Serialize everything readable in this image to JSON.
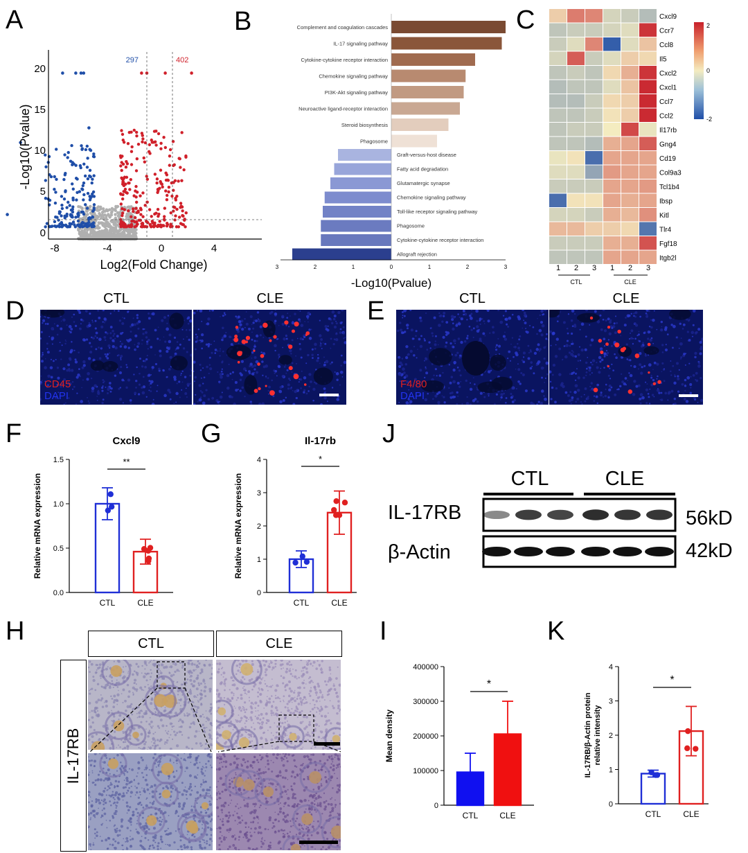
{
  "panels": {
    "A": "A",
    "B": "B",
    "C": "C",
    "D": "D",
    "E": "E",
    "F": "F",
    "G": "G",
    "H": "H",
    "I": "I",
    "J": "J",
    "K": "K"
  },
  "volcano": {
    "xlabel": "Log2(Fold Change)",
    "ylabel": "-Log10(Pvalue)",
    "count_down": "297",
    "count_up": "402",
    "xticks": [
      "-8",
      "-4",
      "0",
      "4"
    ],
    "yticks": [
      "0",
      "5",
      "10",
      "15",
      "20"
    ],
    "colors": {
      "down": "#1f4ea8",
      "up": "#d0202a",
      "ns": "#b0b0b0"
    }
  },
  "kegg": {
    "xlabel": "-Log10(Pvalue)",
    "up_terms": [
      "Complement and coagulation cascades",
      "IL-17 signaling pathway",
      "Cytokine-cytokine receptor interaction",
      "Chemokine signaling pathway",
      "PI3K-Akt signaling pathway",
      "Neuroactive ligand-receptor interaction",
      "Steroid biosynthesis",
      "Phagosome"
    ],
    "up_values": [
      3.0,
      2.9,
      2.2,
      1.95,
      1.9,
      1.8,
      1.5,
      1.2
    ],
    "up_colors": [
      "#7a4a32",
      "#8a563a",
      "#a06b4f",
      "#b88a70",
      "#c19a82",
      "#c9a893",
      "#e3cdbd",
      "#efe1d6"
    ],
    "down_terms": [
      "Graft-versus-host disease",
      "Fatty acid degradation",
      "Glutamatergic synapse",
      "Chemokine signaling pathway",
      "Toll-like receptor signaling pathway",
      "Phagosome",
      "Cytokine-cytokine receptor interaction",
      "Allograft rejection"
    ],
    "down_values": [
      1.4,
      1.5,
      1.6,
      1.75,
      1.8,
      1.85,
      1.85,
      2.6
    ],
    "down_colors": [
      "#a9b4e0",
      "#98a5da",
      "#8a98d4",
      "#7d8cce",
      "#7282c6",
      "#6b7bc0",
      "#6878bd",
      "#2b3f8e"
    ],
    "xticks": [
      "3",
      "2",
      "1",
      "0",
      "1",
      "2",
      "3"
    ]
  },
  "heatmap": {
    "genes": [
      "Cxcl9",
      "Ccr7",
      "Ccl8",
      "Il5",
      "Cxcl2",
      "Cxcl1",
      "Ccl7",
      "Ccl2",
      "Il17rb",
      "Gng4",
      "Cd19",
      "Col9a3",
      "Tcl1b4",
      "Ibsp",
      "Kitl",
      "Tlr4",
      "Fgf18",
      "Itgb2l"
    ],
    "columns": [
      "1",
      "2",
      "3",
      "1",
      "2",
      "3"
    ],
    "groups": [
      "CTL",
      "CLE"
    ],
    "scale": [
      "2",
      "0",
      "-2"
    ],
    "values": [
      [
        0.3,
        1.1,
        1.0,
        -0.3,
        -0.4,
        -0.6
      ],
      [
        -0.5,
        -0.4,
        -0.4,
        -0.3,
        -0.2,
        1.8
      ],
      [
        -0.4,
        -0.2,
        1.0,
        -1.8,
        -0.2,
        0.4
      ],
      [
        -0.3,
        1.4,
        -0.4,
        -0.2,
        0.3,
        0.2
      ],
      [
        -0.5,
        -0.4,
        -0.5,
        0.2,
        0.6,
        1.8
      ],
      [
        -0.6,
        -0.5,
        -0.5,
        -0.2,
        0.4,
        1.9
      ],
      [
        -0.6,
        -0.6,
        -0.4,
        0.2,
        0.3,
        1.9
      ],
      [
        -0.5,
        -0.5,
        -0.4,
        0.1,
        0.3,
        1.9
      ],
      [
        -0.5,
        -0.4,
        -0.4,
        0.0,
        1.6,
        -0.1
      ],
      [
        -0.5,
        -0.5,
        -0.6,
        0.6,
        0.7,
        1.4
      ],
      [
        -0.1,
        0.1,
        -1.6,
        0.7,
        0.7,
        0.7
      ],
      [
        -0.2,
        -0.2,
        -0.9,
        0.8,
        0.7,
        0.7
      ],
      [
        -0.4,
        -0.4,
        -0.4,
        0.7,
        0.7,
        0.8
      ],
      [
        -1.6,
        0.1,
        0.1,
        0.7,
        0.6,
        0.7
      ],
      [
        -0.3,
        -0.3,
        -0.4,
        0.6,
        0.5,
        0.9
      ],
      [
        0.5,
        0.5,
        0.3,
        0.3,
        0.2,
        -1.5
      ],
      [
        -0.4,
        -0.4,
        -0.4,
        0.6,
        0.6,
        1.5
      ],
      [
        -0.5,
        -0.5,
        -0.5,
        0.7,
        0.7,
        0.7
      ]
    ]
  },
  "if_d": {
    "ctl": "CTL",
    "cle": "CLE",
    "marker": "CD45",
    "dapi": "DAPI"
  },
  "if_e": {
    "ctl": "CTL",
    "cle": "CLE",
    "marker": "F4/80",
    "dapi": "DAPI"
  },
  "chart_data": [
    {
      "id": "F",
      "type": "bar",
      "title": "Cxcl9",
      "categories": [
        "CTL",
        "CLE"
      ],
      "values": [
        1.0,
        0.46
      ],
      "errors": [
        0.18,
        0.14
      ],
      "ylabel": "Relative mRNA expression",
      "ylim": [
        0,
        1.5
      ],
      "yticks": [
        "0.0",
        "0.5",
        "1.0",
        "1.5"
      ],
      "significance": "**",
      "colors": [
        "#1f2fd6",
        "#e02020"
      ]
    },
    {
      "id": "G",
      "type": "bar",
      "title": "Il-17rb",
      "categories": [
        "CTL",
        "CLE"
      ],
      "values": [
        1.0,
        2.4
      ],
      "errors": [
        0.25,
        0.65
      ],
      "ylabel": "Relative mRNA expression",
      "ylim": [
        0,
        4
      ],
      "yticks": [
        "0",
        "1",
        "2",
        "3",
        "4"
      ],
      "significance": "*",
      "colors": [
        "#1f2fd6",
        "#e02020"
      ]
    },
    {
      "id": "I",
      "type": "bar",
      "categories": [
        "CTL",
        "CLE"
      ],
      "values": [
        95000,
        205000
      ],
      "errors": [
        55000,
        95000
      ],
      "ylabel": "Mean density",
      "ylim": [
        0,
        400000
      ],
      "yticks": [
        "0",
        "100000",
        "200000",
        "300000",
        "400000"
      ],
      "significance": "*",
      "colors": [
        "#1010f0",
        "#f01010"
      ]
    },
    {
      "id": "K",
      "type": "bar",
      "categories": [
        "CTL",
        "CLE"
      ],
      "values": [
        0.88,
        2.12
      ],
      "errors": [
        0.1,
        0.72
      ],
      "ylabel": "IL-17RB/β-Actin protein relative intensity",
      "ylim": [
        0,
        4
      ],
      "yticks": [
        "0",
        "1",
        "2",
        "3",
        "4"
      ],
      "significance": "*",
      "colors": [
        "#1f2fd6",
        "#e02020"
      ]
    }
  ],
  "blot": {
    "ctl": "CTL",
    "cle": "CLE",
    "protein": "IL-17RB",
    "loading": "β-Actin",
    "size1": "56kD",
    "size2": "42kD",
    "band_int": [
      0.35,
      0.8,
      0.75,
      0.9,
      0.85,
      0.85
    ]
  },
  "ihc": {
    "ctl": "CTL",
    "cle": "CLE",
    "stain": "IL-17RB"
  }
}
